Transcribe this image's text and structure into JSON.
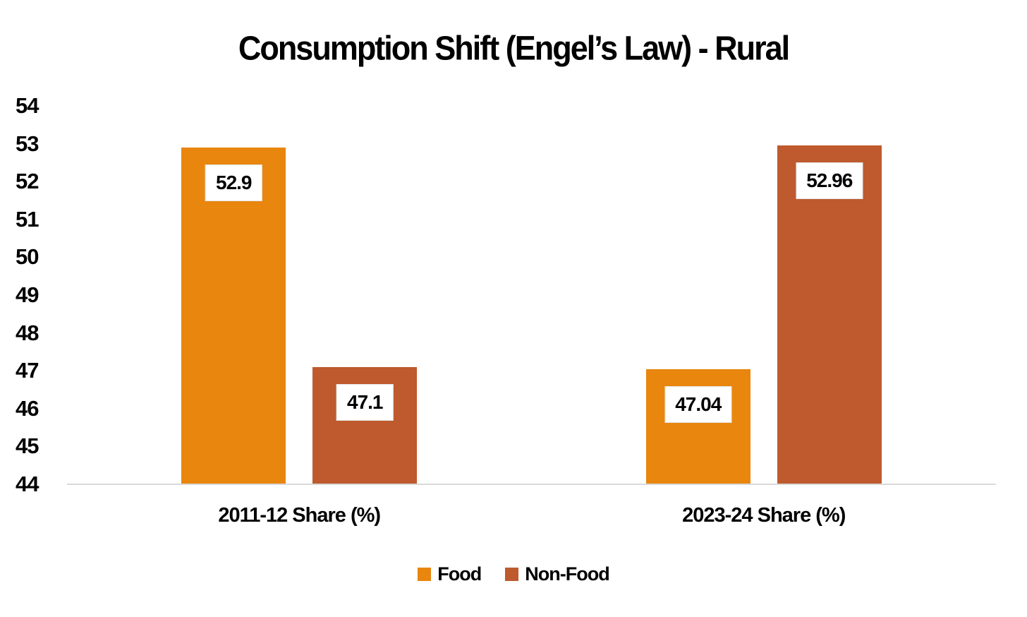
{
  "title": "Consumption Shift (Engel’s Law) - Rural",
  "colors": {
    "food": "#E8860E",
    "non_food": "#BE5A2D",
    "axis_line": "#D9D9D9",
    "text": "#000000",
    "label_box_bg": "#FFFFFF"
  },
  "chart_data": {
    "type": "bar",
    "title": "Consumption Shift (Engel’s Law) - Rural",
    "categories": [
      "2011-12 Share (%)",
      "2023-24 Share (%)"
    ],
    "series": [
      {
        "name": "Food",
        "color": "#E8860E",
        "values": [
          52.9,
          47.04
        ],
        "labels": [
          "52.9",
          "47.04"
        ]
      },
      {
        "name": "Non-Food",
        "color": "#BE5A2D",
        "values": [
          47.1,
          52.96
        ],
        "labels": [
          "47.1",
          "52.96"
        ]
      }
    ],
    "xlabel": "",
    "ylabel": "",
    "ylim": [
      44,
      54
    ],
    "yticks": [
      44,
      45,
      46,
      47,
      48,
      49,
      50,
      51,
      52,
      53,
      54
    ],
    "grid": false,
    "data_labels": true,
    "legend_position": "bottom"
  },
  "legend": {
    "items": [
      {
        "label": "Food",
        "color": "#E8860E"
      },
      {
        "label": "Non-Food",
        "color": "#BE5A2D"
      }
    ]
  }
}
